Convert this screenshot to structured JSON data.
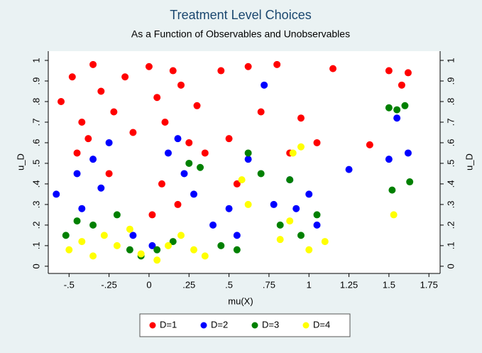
{
  "chart_data": {
    "type": "scatter",
    "title": "Treatment Level Choices",
    "subtitle": "As a Function of Observables and Unobservables",
    "x_label": "mu(X)",
    "y_label": "u_D",
    "xlim": [
      -0.63,
      1.82
    ],
    "ylim": [
      -0.035,
      1.045
    ],
    "xticks": [
      {
        "value": -0.5,
        "label": "-.5"
      },
      {
        "value": -0.25,
        "label": "-.25"
      },
      0,
      {
        "value": 0.25,
        "label": ".25"
      },
      {
        "value": 0.5,
        "label": ".5"
      },
      {
        "value": 0.75,
        "label": ".75"
      },
      1,
      1.25,
      1.5,
      1.75
    ],
    "yticks": [
      0,
      {
        "value": 0.1,
        "label": ".1"
      },
      {
        "value": 0.2,
        "label": ".2"
      },
      {
        "value": 0.3,
        "label": ".3"
      },
      {
        "value": 0.4,
        "label": ".4"
      },
      {
        "value": 0.5,
        "label": ".5"
      },
      {
        "value": 0.6,
        "label": ".6"
      },
      {
        "value": 0.7,
        "label": ".7"
      },
      {
        "value": 0.8,
        "label": ".8"
      },
      {
        "value": 0.9,
        "label": ".9"
      },
      1
    ],
    "grid": false,
    "legend": "bottom",
    "series": [
      {
        "name": "D=1",
        "color": "#ff0000",
        "x": [
          -0.55,
          -0.48,
          -0.42,
          -0.35,
          -0.3,
          -0.22,
          -0.15,
          -0.1,
          -0.45,
          -0.38,
          0.0,
          0.05,
          0.1,
          0.15,
          0.2,
          0.25,
          0.3,
          0.08,
          0.18,
          0.35,
          0.45,
          0.5,
          0.55,
          0.62,
          0.7,
          0.8,
          0.88,
          0.95,
          1.05,
          1.15,
          1.38,
          1.5,
          1.58,
          1.62,
          -0.25,
          0.02
        ],
        "values": [
          0.8,
          0.92,
          0.7,
          0.98,
          0.85,
          0.75,
          0.92,
          0.65,
          0.55,
          0.62,
          0.97,
          0.82,
          0.7,
          0.95,
          0.88,
          0.6,
          0.78,
          0.4,
          0.3,
          0.55,
          0.95,
          0.62,
          0.4,
          0.97,
          0.75,
          0.98,
          0.55,
          0.72,
          0.6,
          0.96,
          0.59,
          0.95,
          0.88,
          0.94,
          0.45,
          0.25
        ]
      },
      {
        "name": "D=2",
        "color": "#0000ff",
        "x": [
          -0.58,
          -0.45,
          -0.35,
          -0.3,
          -0.25,
          -0.42,
          0.02,
          0.12,
          0.18,
          0.22,
          0.28,
          0.4,
          0.5,
          0.55,
          0.62,
          0.72,
          0.78,
          0.88,
          0.92,
          1.0,
          1.05,
          1.25,
          1.5,
          1.55,
          1.62,
          -0.1
        ],
        "values": [
          0.35,
          0.45,
          0.52,
          0.38,
          0.6,
          0.28,
          0.1,
          0.55,
          0.62,
          0.45,
          0.35,
          0.2,
          0.28,
          0.15,
          0.52,
          0.88,
          0.3,
          0.42,
          0.28,
          0.35,
          0.2,
          0.47,
          0.52,
          0.72,
          0.55,
          0.15
        ]
      },
      {
        "name": "D=3",
        "color": "#008000",
        "x": [
          -0.52,
          -0.45,
          -0.35,
          -0.2,
          -0.12,
          -0.05,
          0.05,
          0.15,
          0.25,
          0.32,
          0.45,
          0.55,
          0.62,
          0.7,
          0.82,
          0.88,
          0.95,
          1.05,
          1.52,
          1.55,
          1.6,
          1.63,
          1.5
        ],
        "values": [
          0.15,
          0.22,
          0.2,
          0.25,
          0.08,
          0.05,
          0.08,
          0.12,
          0.5,
          0.48,
          0.1,
          0.08,
          0.55,
          0.45,
          0.2,
          0.42,
          0.15,
          0.25,
          0.37,
          0.76,
          0.78,
          0.41,
          0.77
        ]
      },
      {
        "name": "D=4",
        "color": "#ffff00",
        "x": [
          -0.5,
          -0.42,
          -0.35,
          -0.28,
          -0.2,
          -0.12,
          -0.05,
          0.05,
          0.12,
          0.2,
          0.28,
          0.35,
          0.58,
          0.62,
          0.82,
          0.88,
          0.9,
          0.95,
          1.0,
          1.1,
          1.53
        ],
        "values": [
          0.08,
          0.12,
          0.05,
          0.15,
          0.1,
          0.18,
          0.06,
          0.03,
          0.1,
          0.15,
          0.08,
          0.05,
          0.42,
          0.3,
          0.13,
          0.22,
          0.55,
          0.58,
          0.08,
          0.12,
          0.25
        ]
      }
    ]
  }
}
